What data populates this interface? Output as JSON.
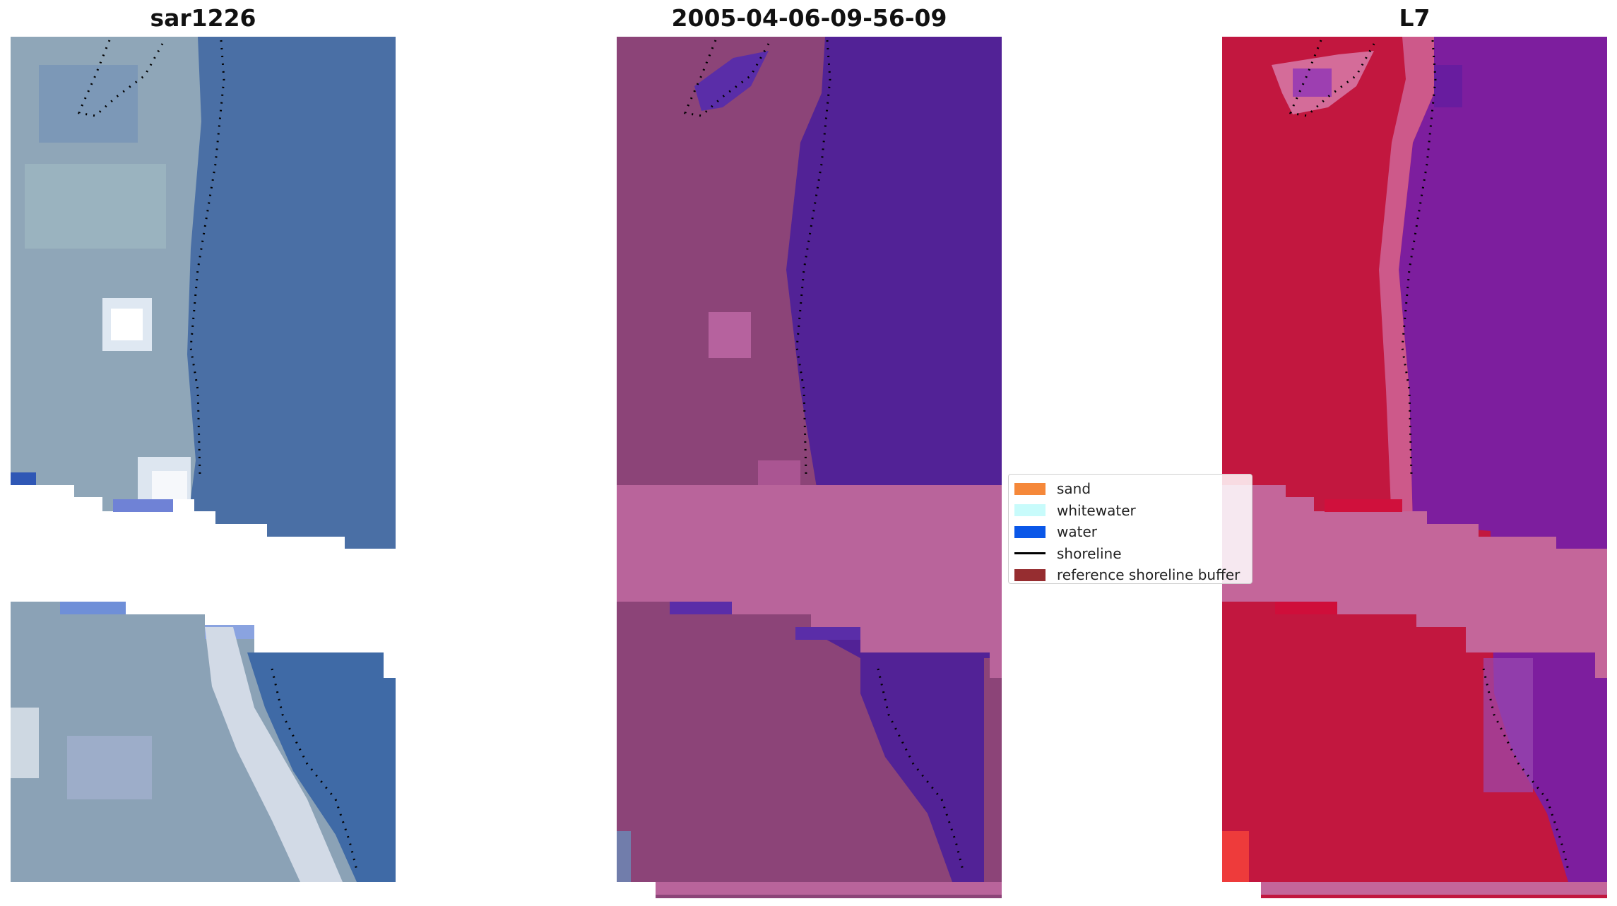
{
  "panels": [
    {
      "title": "sar1226",
      "base": "#4a6fa5",
      "land": "#8fa6b8"
    },
    {
      "title": "2005-04-06-09-56-09",
      "base": "#522296",
      "land": "#8c4478"
    },
    {
      "title": "L7",
      "base": "#7d1e9e",
      "land": "#c2173f"
    }
  ],
  "legend": {
    "items": [
      {
        "label": "sand",
        "color": "#f5883a",
        "kind": "patch"
      },
      {
        "label": "whitewater",
        "color": "#c8fbfb",
        "kind": "patch"
      },
      {
        "label": "water",
        "color": "#0a57e8",
        "kind": "patch"
      },
      {
        "label": "shoreline",
        "color": "#000000",
        "kind": "line"
      },
      {
        "label": "reference shoreline buffer",
        "color": "#962d30",
        "kind": "patch"
      }
    ]
  }
}
